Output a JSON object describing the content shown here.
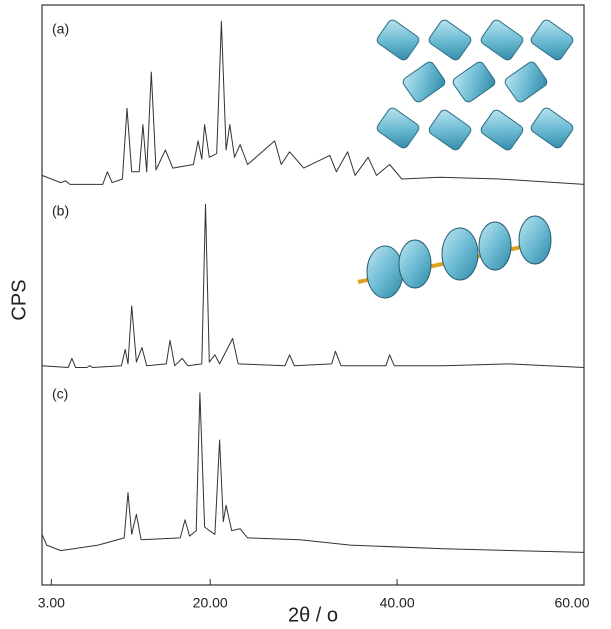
{
  "chart_data": {
    "type": "line",
    "xlabel": "2θ / o",
    "ylabel": "CPS",
    "xlim": [
      2,
      60
    ],
    "xticks": [
      {
        "value": 3,
        "label": "3.00"
      },
      {
        "value": 20,
        "label": "20.00"
      },
      {
        "value": 40,
        "label": "40.00"
      },
      {
        "value": 60,
        "label": "60.00"
      }
    ],
    "ylim": [
      0,
      320
    ],
    "annotations": [
      "(a)",
      "(b)",
      "(c)"
    ],
    "series": [
      {
        "color": "#333333",
        "x": [
          2,
          4.0,
          4.5,
          5.0,
          8.5,
          9.0,
          9.5,
          10.6,
          11.1,
          11.6,
          12.4,
          12.8,
          13.2,
          13.7,
          14.2,
          15.2,
          16.0,
          18.2,
          18.7,
          19.1,
          19.4,
          19.9,
          20.7,
          21.2,
          21.7,
          22.1,
          22.6,
          23.2,
          24.0,
          26.9,
          27.6,
          28.5,
          30,
          32.8,
          33.5,
          34.7,
          35.5,
          36.9,
          37.8,
          39.2,
          40.5,
          44.6,
          51.0,
          60
        ],
        "values": [
          226,
          222,
          223,
          221,
          221,
          228,
          222,
          224,
          263,
          228,
          228,
          254,
          228,
          283,
          229,
          240,
          230,
          232,
          245,
          235,
          254,
          236,
          238,
          311,
          240,
          254,
          236,
          243,
          232,
          245,
          232,
          239,
          230,
          237,
          228,
          239,
          226,
          236,
          226,
          232,
          224,
          225,
          224,
          221
        ]
      },
      {
        "color": "#333333",
        "x": [
          2,
          4.8,
          5.2,
          5.6,
          6.8,
          7.1,
          7.4,
          10.5,
          10.9,
          11.2,
          11.6,
          12.1,
          12.7,
          13.2,
          15.3,
          15.7,
          16.2,
          17.0,
          17.6,
          19.1,
          19.5,
          19.9,
          20.5,
          21.0,
          22.4,
          23.0,
          28.0,
          28.5,
          29.0,
          33.0,
          33.4,
          34.0,
          38.8,
          39.2,
          39.7,
          45,
          52,
          60
        ],
        "values": [
          121,
          120,
          125,
          120,
          120,
          121,
          120,
          121,
          130,
          122,
          154,
          123,
          131,
          121,
          122,
          135,
          121,
          125,
          121,
          122,
          210,
          123,
          127,
          122,
          136,
          122,
          121,
          127,
          121,
          122,
          129,
          121,
          121,
          127,
          121,
          121,
          122,
          120
        ]
      },
      {
        "color": "#333333",
        "x": [
          2,
          2.5,
          4,
          8,
          10.8,
          11.2,
          11.6,
          12.1,
          12.6,
          16.8,
          17.3,
          17.8,
          18.5,
          18.9,
          19.4,
          19.9,
          20.5,
          21.0,
          21.4,
          21.7,
          22.3,
          23.2,
          24,
          29.6,
          35,
          45,
          60
        ],
        "values": [
          28,
          22,
          19,
          22,
          26,
          51,
          28,
          39,
          25,
          26,
          36,
          27,
          30,
          106,
          32,
          30,
          28,
          80,
          35,
          44,
          30,
          31,
          26,
          25,
          22,
          20,
          18
        ]
      }
    ]
  }
}
